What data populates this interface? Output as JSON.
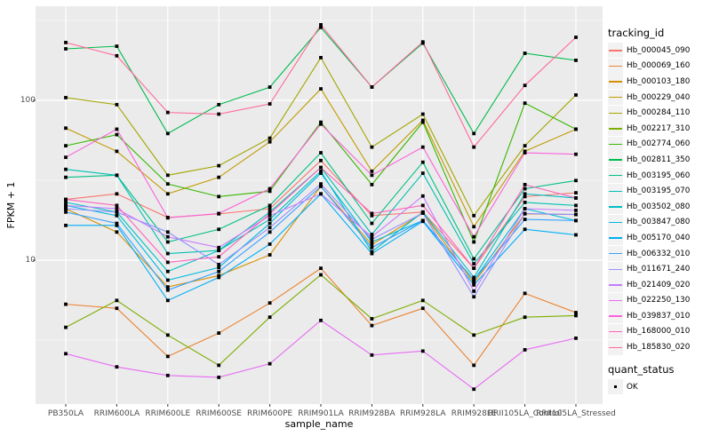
{
  "figure": {
    "y_axis_title": "FPKM + 1",
    "x_axis_title": "sample_name"
  },
  "legend": {
    "tracking_title": "tracking_id",
    "quant_title": "quant_status",
    "quant_items": [
      {
        "label": "OK",
        "marker": "black-square"
      }
    ]
  },
  "chart_data": {
    "type": "line",
    "title": "",
    "xlabel": "sample_name",
    "ylabel": "FPKM + 1",
    "y_scale": "log10",
    "ylim": [
      1.3,
      380
    ],
    "y_ticks": [
      {
        "value": 100,
        "label": "100"
      },
      {
        "value": 10,
        "label": "10"
      }
    ],
    "y_minor_gridlines": [
      3.162,
      31.62,
      316.2
    ],
    "grid": "white-on-gray",
    "panel_bg": "#EBEBEB",
    "gridline_color": "#FFFFFF",
    "tick_text_color": "#4d4d4d",
    "marker": "black-square",
    "marker_color": "#000000",
    "legend_position": "right",
    "categories": [
      "PB350LA",
      "RRIM600LA",
      "RRIM600LE",
      "RRIM600SE",
      "RRIM600PE",
      "RRIM901LA",
      "RRIM928BA",
      "RRIM928LA",
      "RRIM928LE",
      "RRII105LA_Control",
      "RRII105LA_Stressed"
    ],
    "series": [
      {
        "name": "Hb_000045_090",
        "color": "#F8766D",
        "values": [
          24,
          26,
          18.5,
          19.5,
          21,
          42,
          19,
          20,
          8.9,
          25,
          26.4
        ]
      },
      {
        "name": "Hb_000069_160",
        "color": "#EA8331",
        "values": [
          5.3,
          5.0,
          2.5,
          3.5,
          5.4,
          8.9,
          3.9,
          5.0,
          2.2,
          6.2,
          4.7
        ]
      },
      {
        "name": "Hb_000103_180",
        "color": "#D89000",
        "values": [
          21,
          15,
          6.8,
          8.0,
          10.8,
          29,
          12.5,
          19.7,
          7.2,
          19.5,
          19.3
        ]
      },
      {
        "name": "Hb_000229_040",
        "color": "#C09B00",
        "values": [
          67,
          48,
          26,
          33,
          55,
          118,
          36,
          75,
          16.2,
          48,
          66
        ]
      },
      {
        "name": "Hb_000284_110",
        "color": "#A3A500",
        "values": [
          104,
          94,
          34,
          39,
          58,
          185,
          51,
          82,
          19,
          52,
          108
        ]
      },
      {
        "name": "Hb_002217_310",
        "color": "#7CAE00",
        "values": [
          3.8,
          5.6,
          3.4,
          2.2,
          4.4,
          8.1,
          4.3,
          5.6,
          3.4,
          4.4,
          4.5
        ]
      },
      {
        "name": "Hb_002774_060",
        "color": "#39B600",
        "values": [
          52,
          61,
          30,
          25,
          27,
          73,
          29.7,
          73,
          13,
          96,
          66
        ]
      },
      {
        "name": "Hb_002811_350",
        "color": "#00BB4E",
        "values": [
          210,
          218,
          62,
          94,
          121,
          286,
          121,
          228,
          62,
          197,
          178
        ]
      },
      {
        "name": "Hb_003195_060",
        "color": "#00C087",
        "values": [
          33,
          34,
          13,
          15.6,
          22,
          47,
          17,
          41,
          10.2,
          28,
          31.5
        ]
      },
      {
        "name": "Hb_003195_070",
        "color": "#00C0B2",
        "values": [
          37,
          34,
          11,
          11.5,
          20,
          38,
          14.5,
          35,
          9.5,
          23,
          22
        ]
      },
      {
        "name": "Hb_003502_080",
        "color": "#00BFC4",
        "values": [
          23,
          20,
          8.5,
          11.5,
          18,
          36,
          11.3,
          20,
          7.8,
          26,
          24.5
        ]
      },
      {
        "name": "Hb_003847_080",
        "color": "#00BAE0",
        "values": [
          22,
          19,
          7.5,
          9.0,
          17,
          35,
          13,
          17.7,
          7.5,
          21,
          17.7
        ]
      },
      {
        "name": "Hb_005170_040",
        "color": "#00B0F6",
        "values": [
          16.5,
          16.5,
          5.6,
          7.8,
          12.6,
          26,
          11,
          17.5,
          7.0,
          15.6,
          14.4
        ]
      },
      {
        "name": "Hb_006332_010",
        "color": "#35A2FF",
        "values": [
          20,
          17,
          6.5,
          8.5,
          15,
          29,
          12,
          17.7,
          7.5,
          18,
          17.7
        ]
      },
      {
        "name": "Hb_011671_240",
        "color": "#9590FF",
        "values": [
          21,
          20,
          15,
          9.4,
          16,
          30,
          13.5,
          19.7,
          5.9,
          19.6,
          19.3
        ]
      },
      {
        "name": "Hb_021409_020",
        "color": "#C77CFF",
        "values": [
          22,
          21,
          14,
          12,
          19,
          26,
          14,
          25.2,
          6.4,
          21,
          20.5
        ]
      },
      {
        "name": "Hb_022250_130",
        "color": "#E76BF3",
        "values": [
          2.6,
          2.15,
          1.9,
          1.85,
          2.25,
          4.2,
          2.55,
          2.7,
          1.56,
          2.75,
          3.25
        ]
      },
      {
        "name": "Hb_039837_010",
        "color": "#FA62DB",
        "values": [
          44,
          66,
          18.4,
          19.6,
          28,
          71,
          34,
          51,
          14,
          47,
          46
        ]
      },
      {
        "name": "Hb_168000_010",
        "color": "#FF62BC",
        "values": [
          24,
          22,
          9.7,
          10.5,
          19.5,
          38,
          19.6,
          22,
          8.9,
          29.7,
          24.5
        ]
      },
      {
        "name": "Hb_185830_020",
        "color": "#FF6A98",
        "values": [
          230,
          190,
          84,
          82,
          95,
          297,
          121,
          232,
          51,
          124,
          248
        ]
      }
    ]
  }
}
